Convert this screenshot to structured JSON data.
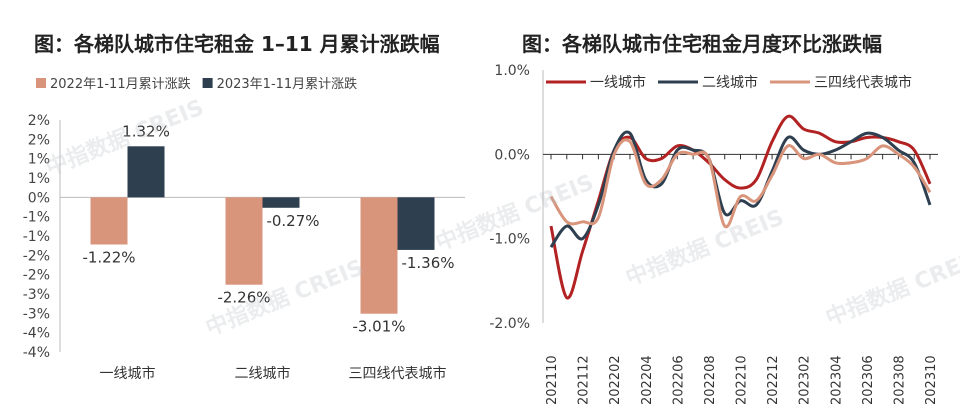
{
  "watermark": "中指数据 CREIS",
  "chart_data": [
    {
      "type": "bar",
      "title": "图：各梯队城市住宅租金 1–11 月累计涨跌幅",
      "categories": [
        "一线城市",
        "二线城市",
        "三四线代表城市"
      ],
      "series": [
        {
          "name": "2022年1-11月累计涨跌",
          "color": "#d9957b",
          "values": [
            -1.22,
            -2.26,
            -3.01
          ],
          "labels": [
            "-1.22%",
            "-2.26%",
            "-3.01%"
          ]
        },
        {
          "name": "2023年1-11月累计涨跌",
          "color": "#2e3f4f",
          "values": [
            1.32,
            -0.27,
            -1.36
          ],
          "labels": [
            "1.32%",
            "-0.27%",
            "-1.36%"
          ]
        }
      ],
      "ylim": [
        -4,
        2
      ],
      "yticks": [
        2,
        1.5,
        1,
        0.5,
        0,
        -0.5,
        -1,
        -1.5,
        -2,
        -2.5,
        -3,
        -3.5,
        -4
      ],
      "ytick_labels": [
        "2%",
        "2%",
        "1%",
        "1%",
        "0%",
        "-1%",
        "-1%",
        "-2%",
        "-2%",
        "-3%",
        "-3%",
        "-4%",
        "-4%"
      ],
      "legend": "top"
    },
    {
      "type": "line",
      "title": "图：各梯队城市住宅租金月度环比涨跌幅",
      "x": [
        "202111",
        "202112",
        "202201",
        "202202",
        "202203",
        "202204",
        "202205",
        "202206",
        "202207",
        "202208",
        "202209",
        "202210",
        "202211",
        "202212",
        "202301",
        "202302",
        "202303",
        "202304",
        "202305",
        "202306",
        "202307",
        "202308",
        "202309",
        "202310",
        "202311"
      ],
      "xtick_labels": [
        "202110",
        "202112",
        "202202",
        "202204",
        "202206",
        "202208",
        "202210",
        "202212",
        "202302",
        "202304",
        "202306",
        "202308",
        "202310"
      ],
      "ylim": [
        -2.0,
        1.0
      ],
      "yticks": [
        1.0,
        0.0,
        -1.0,
        -2.0
      ],
      "ytick_labels": [
        "1.0%",
        "0.0%",
        "-1.0%",
        "-2.0%"
      ],
      "series": [
        {
          "name": "一线城市",
          "color": "#b22222",
          "values": [
            -0.85,
            -1.7,
            -1.15,
            -0.55,
            0.05,
            0.2,
            -0.05,
            -0.05,
            0.1,
            0.05,
            -0.1,
            -0.3,
            -0.4,
            -0.3,
            0.15,
            0.45,
            0.3,
            0.25,
            0.15,
            0.15,
            0.2,
            0.2,
            0.15,
            0.05,
            -0.35
          ]
        },
        {
          "name": "二线城市",
          "color": "#2e3f4f",
          "values": [
            -1.1,
            -0.85,
            -1.0,
            -0.6,
            0.05,
            0.25,
            -0.3,
            -0.35,
            0.05,
            0.05,
            -0.05,
            -0.7,
            -0.55,
            -0.6,
            -0.2,
            0.2,
            0.05,
            0.0,
            0.05,
            0.15,
            0.25,
            0.2,
            0.05,
            -0.1,
            -0.6
          ]
        },
        {
          "name": "三四线代表城市",
          "color": "#d9957b",
          "values": [
            -0.5,
            -0.8,
            -0.8,
            -0.75,
            0.0,
            0.15,
            -0.35,
            -0.3,
            0.0,
            0.0,
            -0.05,
            -0.85,
            -0.5,
            -0.55,
            -0.25,
            0.1,
            -0.05,
            0.0,
            -0.1,
            -0.1,
            -0.05,
            0.1,
            0.0,
            -0.15,
            -0.45
          ]
        }
      ],
      "legend": "top"
    }
  ]
}
